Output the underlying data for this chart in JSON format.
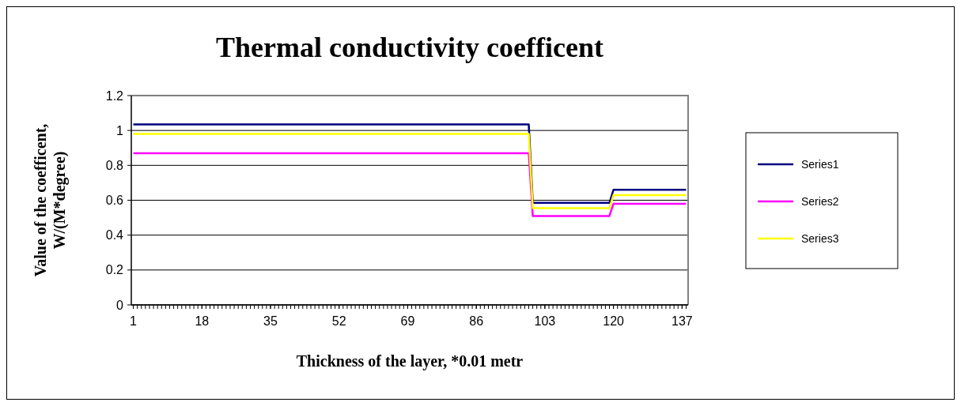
{
  "chart_data": {
    "type": "line",
    "title": "Thermal conductivity coefficent",
    "xlabel": "Thickness of the layer, *0.01 metr",
    "ylabel": "Value of the coefficent, W/(M*degree)",
    "xlim": [
      0.5,
      138.5
    ],
    "xticks": [
      1,
      18,
      35,
      52,
      69,
      86,
      103,
      120,
      137
    ],
    "ylim": [
      0,
      1.2
    ],
    "yticks": [
      0,
      {
        "value": 0.2,
        "label": "0.2"
      },
      {
        "value": 0.4,
        "label": "0.4"
      },
      {
        "value": 0.6,
        "label": "0.6"
      },
      {
        "value": 0.8,
        "label": "0.8"
      },
      1,
      {
        "value": 1.2,
        "label": "1.2"
      }
    ],
    "grid": "y",
    "legend": "right",
    "marker": "none",
    "line_style": "solid",
    "series": [
      {
        "name": "Series1",
        "color": "#000080",
        "x": [
          1,
          99,
          100,
          119,
          120,
          138
        ],
        "values": [
          1.035,
          1.035,
          0.585,
          0.585,
          0.66,
          0.66
        ]
      },
      {
        "name": "Series2",
        "color": "#ff00ff",
        "x": [
          1,
          99,
          100,
          119,
          120,
          138
        ],
        "values": [
          0.87,
          0.87,
          0.51,
          0.51,
          0.58,
          0.58
        ]
      },
      {
        "name": "Series3",
        "color": "#ffff00",
        "x": [
          1,
          99,
          100,
          119,
          120,
          138
        ],
        "values": [
          0.98,
          0.98,
          0.555,
          0.555,
          0.63,
          0.63
        ]
      }
    ]
  }
}
